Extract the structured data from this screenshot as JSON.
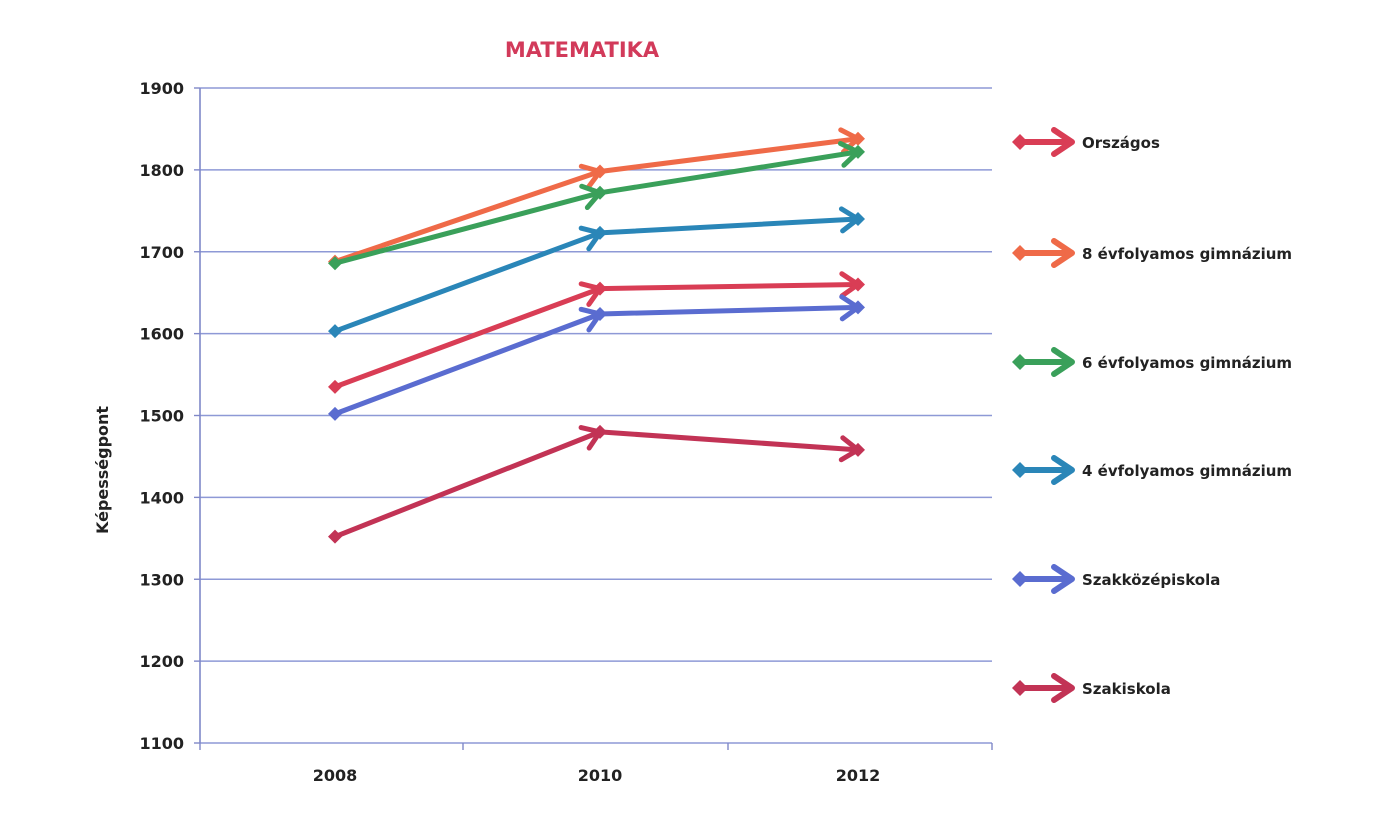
{
  "chart_data": {
    "type": "line",
    "title": "MATEMATIKA",
    "xlabel": "",
    "ylabel": "Képességpont",
    "x": [
      "2008",
      "2010",
      "2012"
    ],
    "ylim": [
      1100,
      1900
    ],
    "yticks": [
      "1900",
      "1800",
      "1700",
      "1600",
      "1500",
      "1400",
      "1300",
      "1200",
      "1100"
    ],
    "grid": true,
    "legend_position": "right",
    "series": [
      {
        "name": "Országos",
        "color": "#d93d55",
        "values": [
          1535,
          1655,
          1660
        ]
      },
      {
        "name": "8 évfolyamos gimnázium",
        "color": "#ef6a48",
        "values": [
          1688,
          1798,
          1838
        ]
      },
      {
        "name": "6 évfolyamos gimnázium",
        "color": "#3aa05a",
        "values": [
          1686,
          1772,
          1822
        ]
      },
      {
        "name": "4 évfolyamos gimnázium",
        "color": "#2a86b8",
        "values": [
          1603,
          1723,
          1740
        ]
      },
      {
        "name": "Szakközépiskola",
        "color": "#5a6cd0",
        "values": [
          1502,
          1624,
          1632
        ]
      },
      {
        "name": "Szakiskola",
        "color": "#c23355",
        "values": [
          1352,
          1480,
          1458
        ]
      }
    ]
  }
}
